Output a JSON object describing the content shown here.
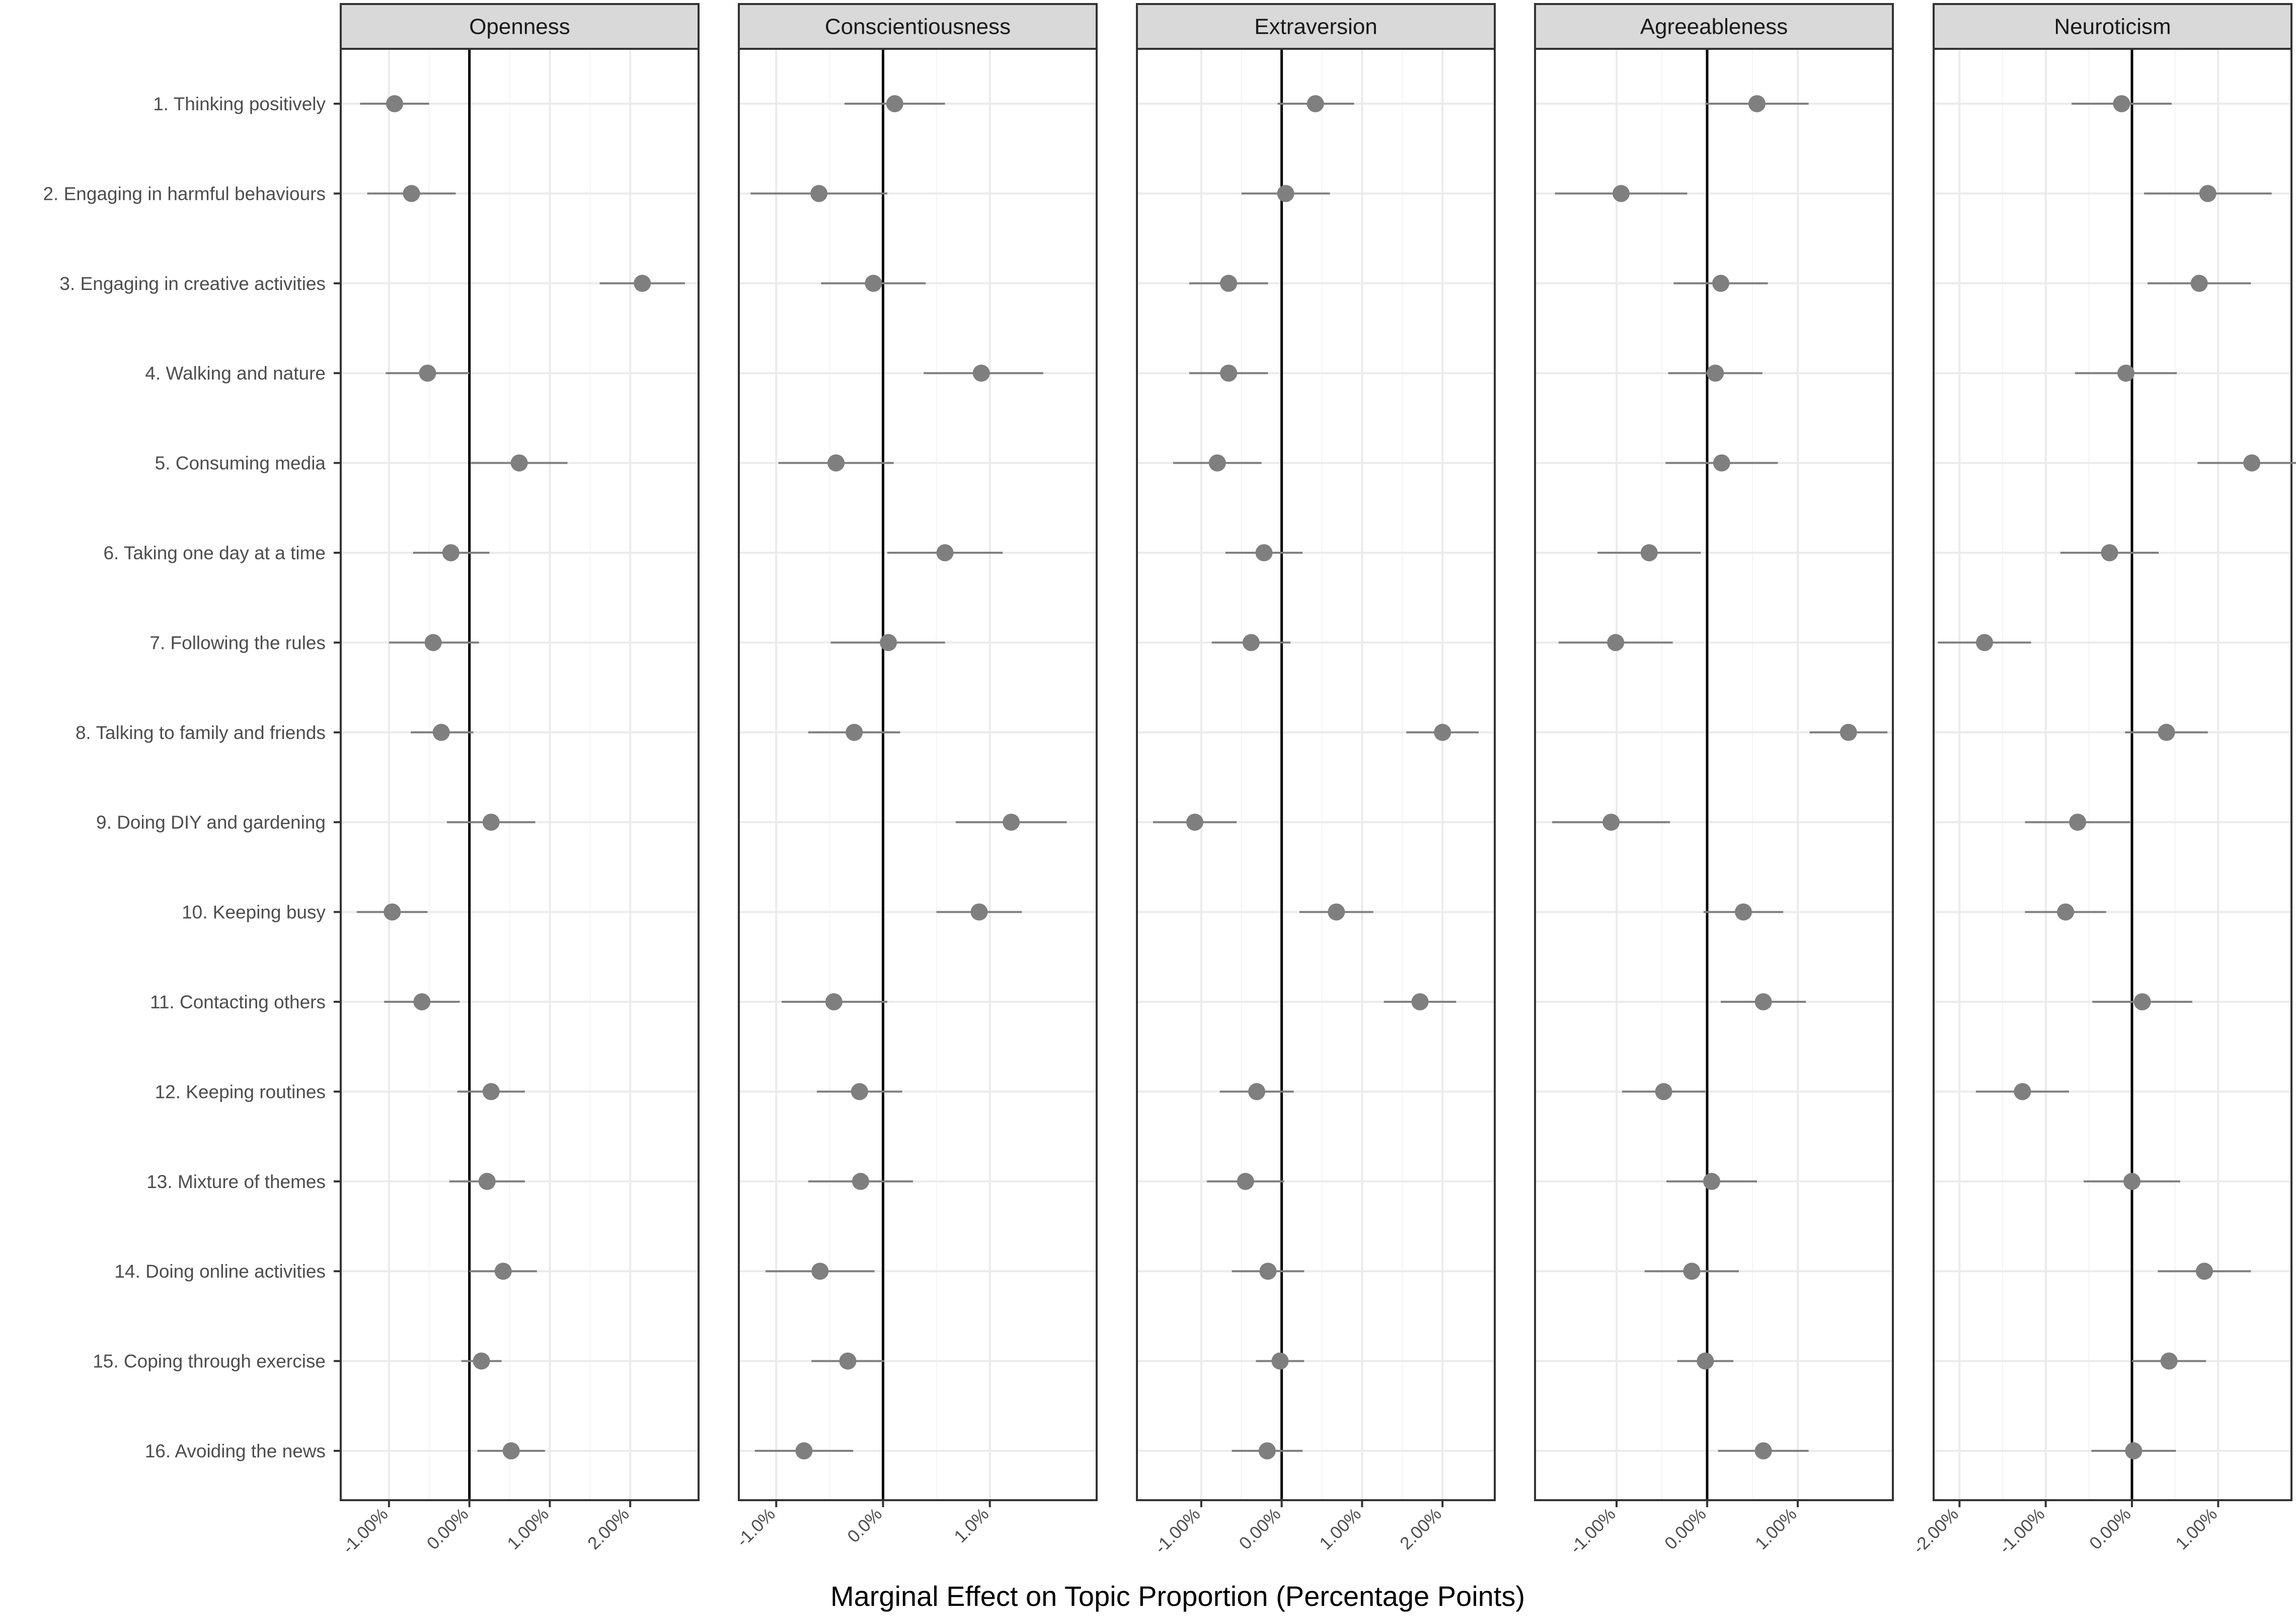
{
  "chart_data": {
    "type": "scatter",
    "subtype": "facetted point-range (coefficient plot)",
    "xlabel": "Marginal Effect on Topic Proportion (Percentage Points)",
    "ylabel": "",
    "grid": true,
    "legend": "none",
    "colors": {
      "point": "#7f7f7f",
      "interval": "#7f7f7f",
      "zero_line": "#000000",
      "strip": "#d9d9d9"
    },
    "categories": [
      "1. Thinking positively",
      "2. Engaging in harmful behaviours",
      "3. Engaging in creative activities",
      "4. Walking and nature",
      "5. Consuming media",
      "6. Taking one day at a time",
      "7. Following the rules",
      "8. Talking to family and friends",
      "9. Doing DIY and gardening",
      "10. Keeping busy",
      "11. Contacting others",
      "12. Keeping routines",
      "13. Mixture of themes",
      "14. Doing online activities",
      "15. Coping through exercise",
      "16. Avoiding the news"
    ],
    "facets": [
      {
        "name": "Openness",
        "xlim": [
          -1.6,
          2.85
        ],
        "ticks": [
          -1,
          0,
          1,
          2
        ],
        "tick_labels": [
          "-1.00%",
          "0.00%",
          "1.00%",
          "2.00%"
        ],
        "estimate": [
          -0.93,
          -0.72,
          2.15,
          -0.52,
          0.62,
          -0.23,
          -0.45,
          -0.35,
          0.27,
          -0.96,
          -0.59,
          0.27,
          0.22,
          0.42,
          0.15,
          0.52
        ],
        "lower": [
          -1.36,
          -1.27,
          1.62,
          -1.04,
          0.02,
          -0.7,
          -1.0,
          -0.73,
          -0.28,
          -1.4,
          -1.06,
          -0.15,
          -0.25,
          0.0,
          -0.1,
          0.1
        ],
        "upper": [
          -0.5,
          -0.17,
          2.68,
          0.0,
          1.22,
          0.25,
          0.12,
          0.05,
          0.82,
          -0.52,
          -0.12,
          0.69,
          0.69,
          0.84,
          0.4,
          0.94
        ]
      },
      {
        "name": "Conscientiousness",
        "xlim": [
          -1.35,
          2.0
        ],
        "ticks": [
          -1,
          0,
          1
        ],
        "tick_labels": [
          "-1.0%",
          "0.0%",
          "1.0%"
        ],
        "estimate": [
          0.11,
          -0.6,
          -0.09,
          0.92,
          -0.44,
          0.58,
          0.05,
          -0.27,
          1.2,
          0.9,
          -0.46,
          -0.22,
          -0.21,
          -0.59,
          -0.33,
          -0.74
        ],
        "lower": [
          -0.36,
          -1.24,
          -0.58,
          0.38,
          -0.98,
          0.04,
          -0.49,
          -0.7,
          0.68,
          0.5,
          -0.95,
          -0.62,
          -0.7,
          -1.1,
          -0.67,
          -1.2
        ],
        "upper": [
          0.58,
          0.04,
          0.4,
          1.5,
          0.1,
          1.12,
          0.58,
          0.16,
          1.72,
          1.3,
          0.04,
          0.18,
          0.28,
          -0.08,
          0.01,
          -0.28
        ]
      },
      {
        "name": "Extraversion",
        "xlim": [
          -1.8,
          2.65
        ],
        "ticks": [
          -1,
          0,
          1,
          2
        ],
        "tick_labels": [
          "-1.00%",
          "0.00%",
          "1.00%",
          "2.00%"
        ],
        "estimate": [
          0.42,
          0.05,
          -0.66,
          -0.66,
          -0.8,
          -0.22,
          -0.38,
          2.0,
          -1.08,
          0.68,
          1.72,
          -0.31,
          -0.45,
          -0.17,
          -0.02,
          -0.18
        ],
        "lower": [
          -0.05,
          -0.5,
          -1.15,
          -1.15,
          -1.35,
          -0.7,
          -0.87,
          1.55,
          -1.6,
          0.22,
          1.27,
          -0.77,
          -0.93,
          -0.62,
          -0.32,
          -0.62
        ],
        "upper": [
          0.9,
          0.6,
          -0.17,
          -0.17,
          -0.25,
          0.26,
          0.11,
          2.45,
          -0.56,
          1.14,
          2.17,
          0.15,
          0.03,
          0.28,
          0.28,
          0.26
        ]
      },
      {
        "name": "Agreeableness",
        "xlim": [
          -1.9,
          2.05
        ],
        "ticks": [
          -1,
          0,
          1
        ],
        "tick_labels": [
          "-1.00%",
          "0.00%",
          "1.00%"
        ],
        "estimate": [
          0.55,
          -0.95,
          0.15,
          0.09,
          0.16,
          -0.64,
          -1.01,
          1.56,
          -1.06,
          0.4,
          0.62,
          -0.48,
          0.05,
          -0.17,
          -0.02,
          0.62
        ],
        "lower": [
          -0.02,
          -1.68,
          -0.37,
          -0.43,
          -0.46,
          -1.21,
          -1.64,
          1.13,
          -1.71,
          -0.04,
          0.15,
          -0.94,
          -0.45,
          -0.69,
          -0.33,
          0.12
        ],
        "upper": [
          1.12,
          -0.22,
          0.67,
          0.61,
          0.78,
          -0.07,
          -0.38,
          1.99,
          -0.41,
          0.84,
          1.09,
          -0.02,
          0.55,
          0.35,
          0.29,
          1.12
        ]
      },
      {
        "name": "Neuroticism",
        "xlim": [
          -2.3,
          1.85
        ],
        "ticks": [
          -2,
          -1,
          0,
          1
        ],
        "tick_labels": [
          "-2.00%",
          "-1.00%",
          "0.00%",
          "1.00%"
        ],
        "estimate": [
          -0.12,
          0.88,
          0.78,
          -0.07,
          1.39,
          -0.26,
          -1.71,
          0.4,
          -0.63,
          -0.77,
          0.12,
          -1.27,
          0.0,
          0.84,
          0.43,
          0.02
        ],
        "lower": [
          -0.7,
          0.14,
          0.18,
          -0.66,
          0.76,
          -0.83,
          -2.25,
          -0.08,
          -1.24,
          -1.24,
          -0.46,
          -1.81,
          -0.56,
          0.3,
          0.0,
          -0.47
        ],
        "upper": [
          0.46,
          1.62,
          1.38,
          0.52,
          2.02,
          0.31,
          -1.17,
          0.88,
          -0.02,
          -0.3,
          0.7,
          -0.73,
          0.56,
          1.38,
          0.86,
          0.51
        ]
      }
    ]
  }
}
